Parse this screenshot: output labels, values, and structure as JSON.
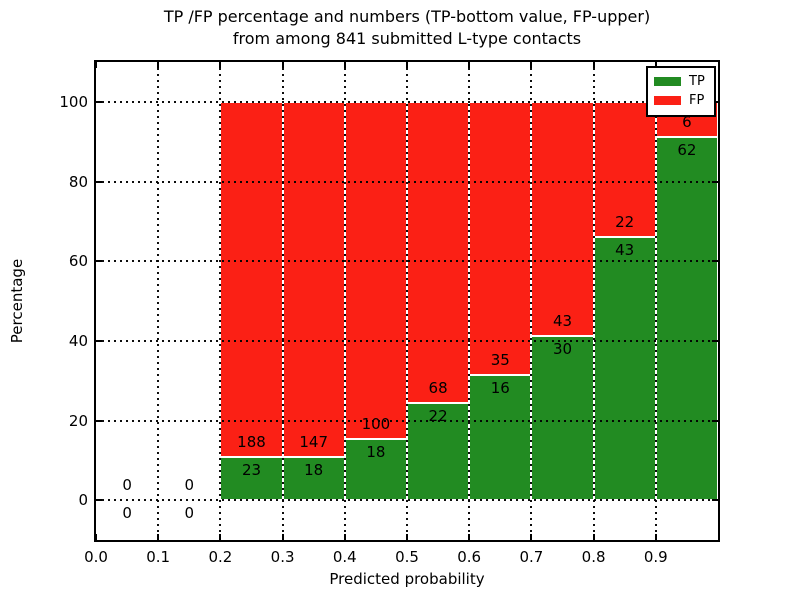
{
  "title": {
    "line1": "TP /FP percentage and numbers (TP-bottom value, FP-upper)",
    "line2": "from among 841 submitted L-type contacts"
  },
  "chart_data": {
    "type": "bar",
    "stacked": true,
    "title": "TP /FP percentage and numbers (TP-bottom value, FP-upper) from among 841 submitted L-type contacts",
    "xlabel": "Predicted probability",
    "ylabel": "Percentage",
    "xlim": [
      0.0,
      1.0
    ],
    "ylim": [
      -10,
      110
    ],
    "x_ticks": [
      {
        "value": 0.0,
        "label": "0.0"
      },
      {
        "value": 0.1,
        "label": "0.1"
      },
      {
        "value": 0.2,
        "label": "0.2"
      },
      {
        "value": 0.3,
        "label": "0.3"
      },
      {
        "value": 0.4,
        "label": "0.4"
      },
      {
        "value": 0.5,
        "label": "0.5"
      },
      {
        "value": 0.6,
        "label": "0.6"
      },
      {
        "value": 0.7,
        "label": "0.7"
      },
      {
        "value": 0.8,
        "label": "0.8"
      },
      {
        "value": 0.9,
        "label": "0.9"
      }
    ],
    "y_ticks": [
      {
        "value": 0,
        "label": "0"
      },
      {
        "value": 20,
        "label": "20"
      },
      {
        "value": 40,
        "label": "40"
      },
      {
        "value": 60,
        "label": "60"
      },
      {
        "value": 80,
        "label": "80"
      },
      {
        "value": 100,
        "label": "100"
      }
    ],
    "grid": true,
    "legend": {
      "position": "upper right",
      "entries": [
        {
          "label": "TP",
          "color": "#228b22"
        },
        {
          "label": "FP",
          "color": "#fb2015"
        }
      ]
    },
    "colors": {
      "tp": "#228b22",
      "fp": "#fb2015",
      "bar_edge": "#ffffff"
    },
    "bins": [
      {
        "x0": 0.0,
        "x1": 0.1,
        "tp": 0,
        "fp": 0,
        "tp_label": "0",
        "fp_label": "0"
      },
      {
        "x0": 0.1,
        "x1": 0.2,
        "tp": 0,
        "fp": 0,
        "tp_label": "0",
        "fp_label": "0"
      },
      {
        "x0": 0.2,
        "x1": 0.3,
        "tp": 23,
        "fp": 188,
        "tp_label": "23",
        "fp_label": "188"
      },
      {
        "x0": 0.3,
        "x1": 0.4,
        "tp": 18,
        "fp": 147,
        "tp_label": "18",
        "fp_label": "147"
      },
      {
        "x0": 0.4,
        "x1": 0.5,
        "tp": 18,
        "fp": 100,
        "tp_label": "18",
        "fp_label": "100"
      },
      {
        "x0": 0.5,
        "x1": 0.6,
        "tp": 22,
        "fp": 68,
        "tp_label": "22",
        "fp_label": "68"
      },
      {
        "x0": 0.6,
        "x1": 0.7,
        "tp": 16,
        "fp": 35,
        "tp_label": "16",
        "fp_label": "35"
      },
      {
        "x0": 0.7,
        "x1": 0.8,
        "tp": 30,
        "fp": 43,
        "tp_label": "30",
        "fp_label": "43"
      },
      {
        "x0": 0.8,
        "x1": 0.9,
        "tp": 43,
        "fp": 22,
        "tp_label": "43",
        "fp_label": "22"
      },
      {
        "x0": 0.9,
        "x1": 1.0,
        "tp": 62,
        "fp": 6,
        "tp_label": "62",
        "fp_label": "6"
      }
    ]
  }
}
